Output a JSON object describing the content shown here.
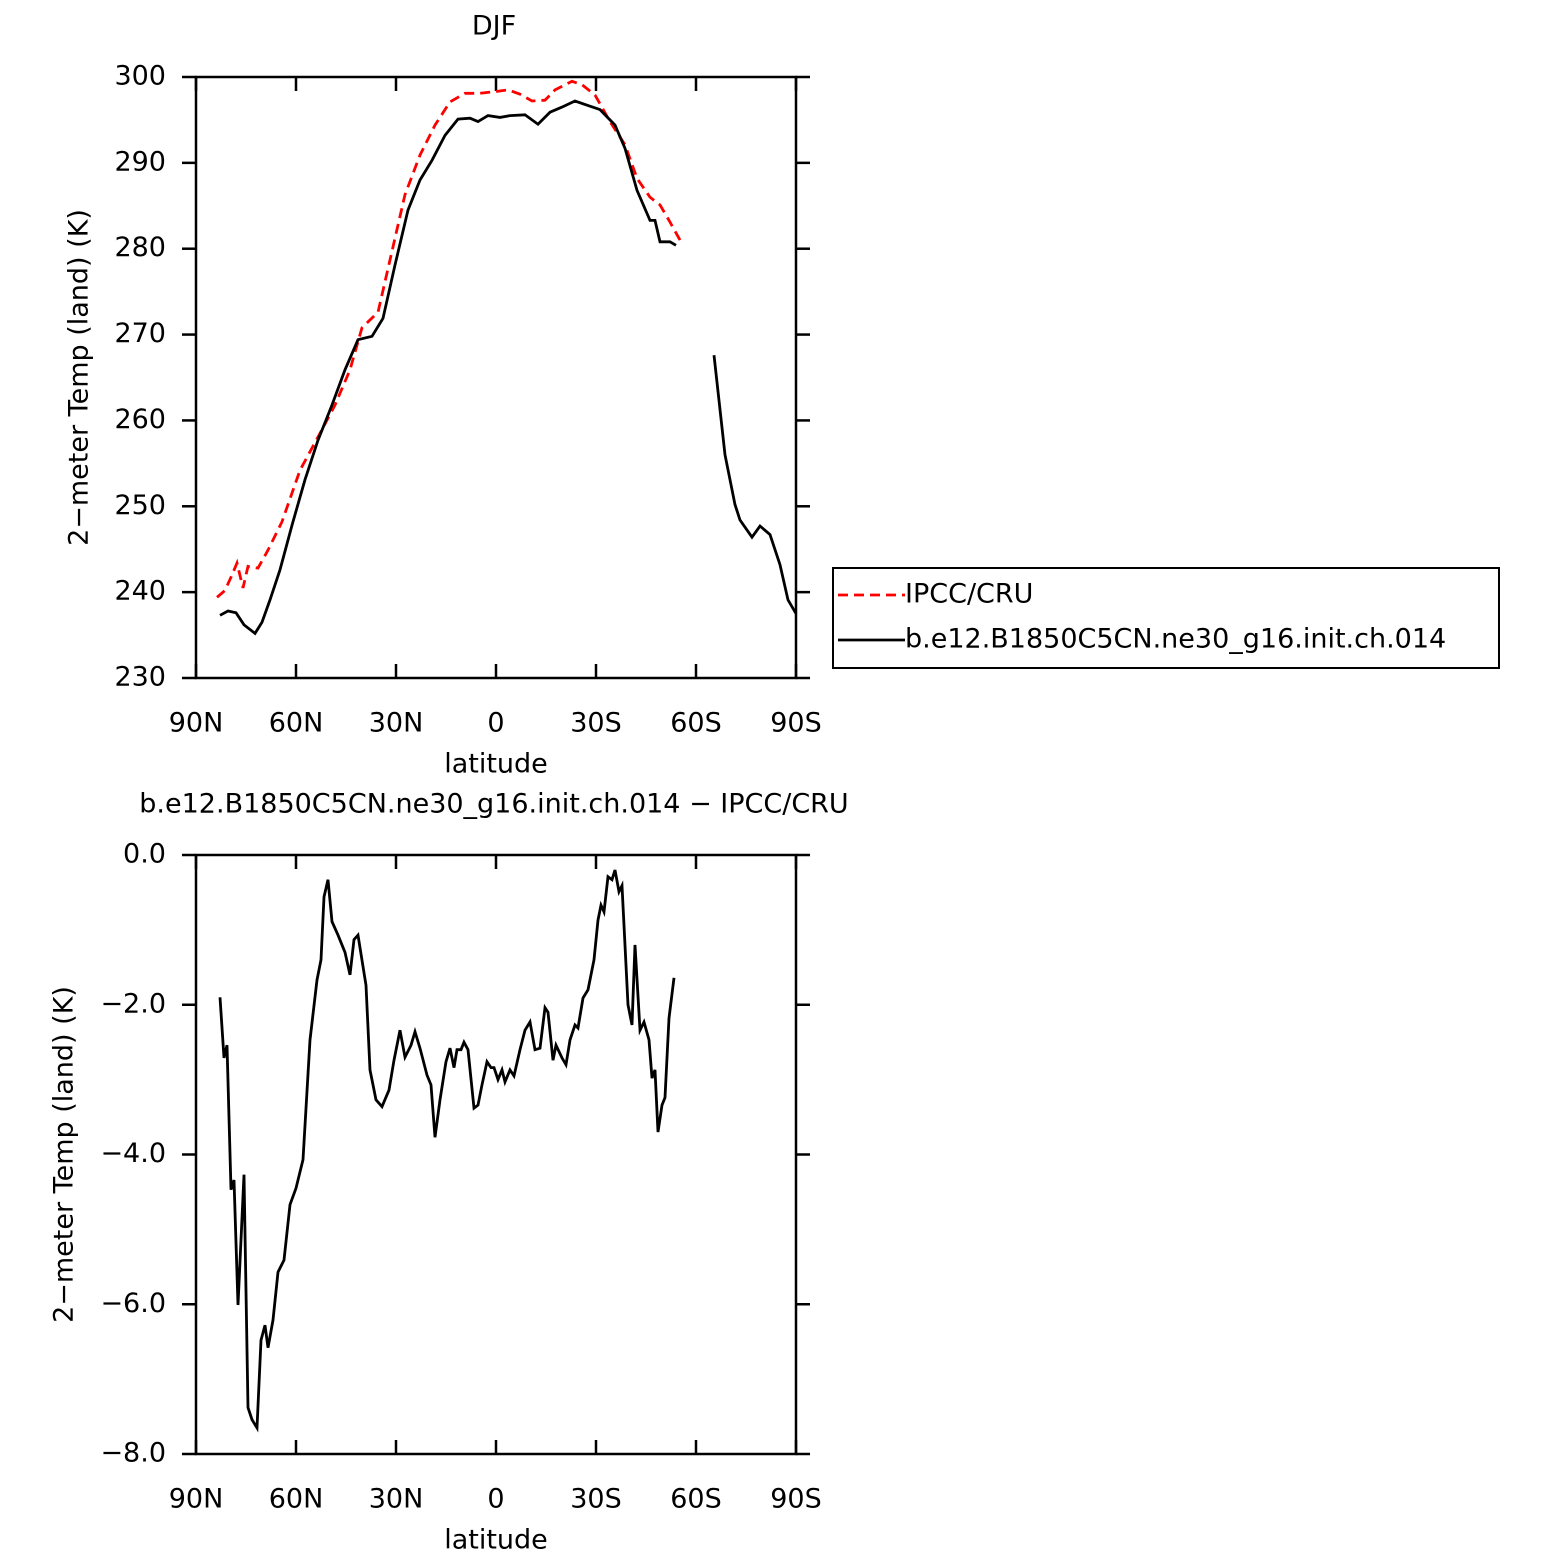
{
  "chart_data": [
    {
      "type": "line",
      "title": "DJF",
      "xlabel": "latitude",
      "ylabel": "2−meter Temp (land) (K)",
      "xlim": [
        90,
        -90
      ],
      "xticks": [
        {
          "value": 90,
          "label": "90N"
        },
        {
          "value": 60,
          "label": "60N"
        },
        {
          "value": 30,
          "label": "30N"
        },
        0,
        {
          "value": -30,
          "label": "30S"
        },
        {
          "value": -60,
          "label": "60S"
        },
        {
          "value": -90,
          "label": "90S"
        }
      ],
      "ylim": [
        230,
        300
      ],
      "yticks": [
        230,
        240,
        250,
        260,
        270,
        280,
        290,
        300
      ],
      "legend": "outside-right",
      "series": [
        {
          "name": "IPCC/CRU",
          "color": "#ff0000",
          "linestyle": "dashed",
          "x": [
            83.7,
            81.3,
            79.2,
            77.7,
            75.9,
            74.4,
            71.4,
            68.4,
            64.2,
            58.8,
            52.8,
            48.3,
            43.8,
            40.2,
            35.4,
            31.8,
            27.3,
            22.8,
            18.3,
            13.8,
            9.3,
            4.8,
            0.3,
            -3.6,
            -7.2,
            -10.8,
            -14.7,
            -17.7,
            -22.8,
            -25.8,
            -29.7,
            -34.2,
            -38.7,
            -42.3,
            -46.2,
            -49.2,
            -52.2,
            -55.2
          ],
          "values": [
            239.4,
            240.2,
            242.0,
            243.4,
            240.5,
            243.0,
            242.8,
            244.9,
            248.2,
            254.2,
            258.5,
            261.8,
            265.9,
            270.8,
            272.6,
            278.7,
            286.3,
            290.9,
            294.4,
            297.1,
            298.1,
            298.1,
            298.3,
            298.5,
            298.0,
            297.2,
            297.3,
            298.5,
            299.5,
            299.1,
            297.9,
            294.8,
            292.1,
            288.2,
            286.0,
            285.1,
            283.1,
            281.0
          ]
        },
        {
          "name": "b.e12.B1850C5CN.ne30_g16.init.ch.014",
          "color": "#000000",
          "linestyle": "solid",
          "x": [
            82.8,
            80.4,
            78,
            75.6,
            72.3,
            70.2,
            67.8,
            64.8,
            61.2,
            57.3,
            53.4,
            49.2,
            45.3,
            41.4,
            37.2,
            33.9,
            30.3,
            26.4,
            22.8,
            19.2,
            15.3,
            11.4,
            7.8,
            5.4,
            2.4,
            -1.2,
            -4.2,
            -8.7,
            -12.6,
            -16.2,
            -19.8,
            -23.7,
            -28.2,
            -31.2,
            -35.7,
            -38.7,
            -42.3,
            -46.2,
            -47.7,
            -49.2,
            -52.2,
            -54,
            -60,
            -65.4,
            -68.7,
            -71.7,
            -73.2,
            -76.8,
            -79.2,
            -82.2,
            -85.2,
            -87.6,
            -90
          ],
          "values": [
            237.3,
            237.8,
            237.6,
            236.2,
            235.2,
            236.5,
            239.1,
            242.6,
            247.8,
            253.1,
            257.7,
            261.8,
            265.9,
            269.4,
            269.8,
            271.9,
            278.1,
            284.5,
            288.0,
            290.3,
            293.2,
            295.1,
            295.2,
            294.8,
            295.5,
            295.3,
            295.5,
            295.6,
            294.5,
            295.9,
            296.5,
            297.2,
            296.6,
            296.2,
            294.4,
            291.7,
            286.8,
            283.3,
            283.3,
            280.8,
            280.8,
            280.4,
            null,
            267.6,
            256.0,
            250.2,
            248.4,
            246.4,
            247.7,
            246.7,
            243.2,
            239.1,
            237.5
          ]
        }
      ]
    },
    {
      "type": "line",
      "title": "b.e12.B1850C5CN.ne30_g16.init.ch.014 − IPCC/CRU",
      "xlabel": "latitude",
      "ylabel": "2−meter Temp (land) (K)",
      "xlim": [
        90,
        -90
      ],
      "xticks": [
        {
          "value": 90,
          "label": "90N"
        },
        {
          "value": 60,
          "label": "60N"
        },
        {
          "value": 30,
          "label": "30N"
        },
        0,
        {
          "value": -30,
          "label": "30S"
        },
        {
          "value": -60,
          "label": "60S"
        },
        {
          "value": -90,
          "label": "90S"
        }
      ],
      "ylim": [
        -8,
        0
      ],
      "yticks": [
        {
          "value": -8,
          "label": "−8.0"
        },
        {
          "value": -6,
          "label": "−6.0"
        },
        {
          "value": -4,
          "label": "−4.0"
        },
        {
          "value": -2,
          "label": "−2.0"
        },
        {
          "value": 0,
          "label": "0.0"
        }
      ],
      "series": [
        {
          "color": "#000000",
          "linestyle": "solid",
          "x": [
            82.8,
            81.6,
            80.7,
            79.5,
            78.6,
            77.4,
            75.6,
            74.4,
            73.2,
            71.7,
            70.5,
            69.3,
            68.4,
            66.9,
            65.4,
            63.6,
            61.8,
            60.0,
            57.9,
            55.8,
            53.7,
            52.5,
            51.6,
            50.4,
            49.2,
            47.4,
            45.3,
            43.8,
            42.6,
            41.4,
            39.0,
            37.8,
            36.0,
            34.2,
            32.1,
            30.6,
            28.8,
            27.3,
            25.5,
            24.3,
            22.8,
            20.7,
            19.5,
            18.3,
            16.8,
            15.0,
            13.8,
            12.6,
            11.7,
            10.5,
            9.6,
            8.4,
            6.6,
            5.4,
            4.2,
            2.7,
            1.5,
            0.6,
            -0.6,
            -1.8,
            -2.7,
            -4.2,
            -5.4,
            -7.2,
            -8.7,
            -10.2,
            -11.7,
            -13.2,
            -14.7,
            -15.6,
            -17.1,
            -18.0,
            -19.8,
            -21.0,
            -22.2,
            -23.7,
            -24.6,
            -26.1,
            -27.6,
            -29.4,
            -30.6,
            -31.5,
            -32.4,
            -33.6,
            -34.8,
            -35.7,
            -36.9,
            -37.8,
            -39.6,
            -40.8,
            -41.7,
            -43.2,
            -44.4,
            -45.9,
            -46.8,
            -47.7,
            -48.6,
            -49.8,
            -50.7,
            -51.9,
            -53.4
          ],
          "values": [
            -1.9,
            -2.71,
            -2.54,
            -4.47,
            -4.34,
            -6.01,
            -4.27,
            -7.38,
            -7.54,
            -7.65,
            -6.48,
            -6.28,
            -6.58,
            -6.21,
            -5.57,
            -5.41,
            -4.67,
            -4.45,
            -4.07,
            -2.47,
            -1.67,
            -1.4,
            -0.56,
            -0.33,
            -0.89,
            -1.07,
            -1.3,
            -1.6,
            -1.13,
            -1.07,
            -1.74,
            -2.87,
            -3.27,
            -3.36,
            -3.14,
            -2.74,
            -2.34,
            -2.7,
            -2.54,
            -2.36,
            -2.58,
            -2.94,
            -3.07,
            -3.77,
            -3.27,
            -2.76,
            -2.58,
            -2.84,
            -2.6,
            -2.6,
            -2.5,
            -2.6,
            -3.38,
            -3.34,
            -3.07,
            -2.76,
            -2.84,
            -2.84,
            -3.0,
            -2.87,
            -3.03,
            -2.87,
            -2.95,
            -2.6,
            -2.34,
            -2.23,
            -2.6,
            -2.58,
            -2.04,
            -2.1,
            -2.74,
            -2.54,
            -2.71,
            -2.8,
            -2.47,
            -2.27,
            -2.31,
            -1.91,
            -1.8,
            -1.4,
            -0.87,
            -0.67,
            -0.76,
            -0.29,
            -0.33,
            -0.2,
            -0.49,
            -0.41,
            -2.0,
            -2.27,
            -1.2,
            -2.34,
            -2.23,
            -2.47,
            -2.98,
            -2.87,
            -3.7,
            -3.34,
            -3.24,
            -2.18,
            -1.64
          ]
        }
      ]
    }
  ]
}
